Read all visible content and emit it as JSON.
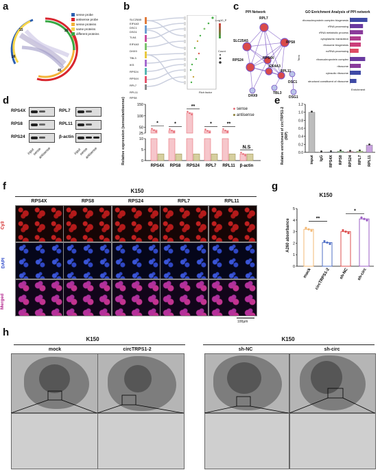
{
  "panels": {
    "a": {
      "label": "a",
      "legend": [
        {
          "text": "sense probe",
          "color": "#2c5fb0"
        },
        {
          "text": "antisense probe",
          "color": "#d8262f"
        },
        {
          "text": "sense proteins",
          "color": "#f3b33a"
        },
        {
          "text": "same proteins",
          "color": "#f7d54a"
        },
        {
          "text": "different proteins",
          "color": "#39a845"
        }
      ],
      "numbers": [
        "15",
        "26",
        "26",
        "45"
      ]
    },
    "b": {
      "label": "b",
      "genes": [
        "SLC25A5",
        "EIF4A3",
        "DSC1",
        "DSG1",
        "TLN1",
        "EIF4A3",
        "DHX9",
        "TBL3",
        "IKS",
        "RPS24",
        "RPS4X",
        "RPL7",
        "RPL11",
        "RPS8"
      ],
      "xlabel": "Rich factor",
      "legend_title": "-Log10_P",
      "count_label": "Count"
    },
    "c": {
      "label": "c",
      "network_title": "PPI Network",
      "nodes": [
        "RPL7",
        "SLC25A5",
        "RPS8",
        "RPS24",
        "RPS4X",
        "EIF4A3",
        "DSC1",
        "RPL11",
        "TBL3",
        "DHX9",
        "DSG1"
      ],
      "go_title": "GO Enrichment Analysis of PPI network",
      "go_terms": [
        "ribonucleoprotein complex biogenesis",
        "rRNA processing",
        "rRNA metabolic process",
        "cytoplasmic translation",
        "ribosome biogenesis",
        "ncRNA processing",
        "ribonucleoprotein complex",
        "ribosome",
        "cytosolic ribosome",
        "structural constituent of ribosome"
      ],
      "go_values": [
        8,
        6,
        6,
        5,
        5,
        4,
        7,
        5,
        5,
        3
      ],
      "go_colors": [
        "#3f4aa6",
        "#6a3aa0",
        "#8a3b9b",
        "#b13c8e",
        "#cc3f7a",
        "#de4b64",
        "#6a3aa0",
        "#8a3b9b",
        "#3f4aa6",
        "#3f4aa6"
      ],
      "xlabel": "Enrichment",
      "side_label": "Term"
    },
    "d": {
      "label": "d",
      "blots_left": [
        "RPS4X",
        "RPS8",
        "RPS24"
      ],
      "blots_right": [
        "RPL7",
        "RPL11",
        "β-actin"
      ],
      "lanes": [
        "input",
        "sense",
        "antisense"
      ],
      "ylabel": "Relative expression (sense/antisense)",
      "legend": [
        {
          "text": "sense",
          "color": "#e8707a"
        },
        {
          "text": "antisense",
          "color": "#9c9256"
        }
      ],
      "sig": [
        "*",
        "*",
        "**",
        "*",
        "**",
        "N.S"
      ]
    },
    "e": {
      "label": "e",
      "ylabel": "Relative enrichment of circTRPS1-2 (RIP)"
    },
    "f": {
      "label": "f",
      "title": "K150",
      "cols": [
        "RPS4X",
        "RPS8",
        "RPS24",
        "RPL7",
        "RPL11"
      ],
      "rows": [
        {
          "text": "Cy3",
          "color": "#d12020"
        },
        {
          "text": "DAPI",
          "color": "#2a45c8"
        },
        {
          "text": "Merged",
          "color": "#b01f8a"
        }
      ],
      "scale": "100μm"
    },
    "g": {
      "label": "g",
      "title": "K150",
      "ylabel": "A260 absorbance",
      "sig": [
        "**",
        "*"
      ]
    },
    "h": {
      "label": "h",
      "left_title": "K150",
      "right_title": "K150",
      "columns": [
        "mock",
        "circTRPS1-2",
        "sh-NC",
        "sh-circ"
      ]
    }
  },
  "chart_data": [
    {
      "type": "bar",
      "title": "",
      "categories": [
        "RPS4X",
        "RPS8",
        "RPS24",
        "RPL7",
        "RPL11",
        "β-actin"
      ],
      "series": [
        {
          "name": "sense",
          "values": [
            38,
            36,
            112,
            35,
            36,
            3
          ]
        },
        {
          "name": "antisense",
          "values": [
            3,
            3,
            3,
            3,
            3,
            3
          ]
        }
      ],
      "ylim": [
        0,
        150
      ],
      "ybreak": [
        10,
        25
      ],
      "yticks": [
        "150",
        "100",
        "50",
        "25",
        "10",
        "5",
        "0"
      ]
    },
    {
      "type": "bar",
      "categories": [
        "input",
        "IgG",
        "RPS4X",
        "RPS8",
        "RPS24",
        "RPL7",
        "RPL11"
      ],
      "values": [
        1.0,
        0.005,
        0.01,
        0.03,
        0.02,
        0.03,
        0.18
      ],
      "ylim": [
        0,
        1.2
      ],
      "yticks": [
        "1.2",
        "1.0",
        "0.8",
        "0.6",
        "0.4",
        "0.2",
        "0.0"
      ]
    },
    {
      "type": "bar",
      "categories": [
        "mock",
        "circTRPS1-2",
        "sh-NC",
        "sh-circ"
      ],
      "values": [
        3.2,
        2.05,
        3.0,
        4.1
      ],
      "ylim": [
        0,
        5
      ],
      "yticks": [
        "5",
        "4",
        "3",
        "2",
        "1",
        "0"
      ],
      "colors": [
        "#f3b874",
        "#4f6fc6",
        "#dd4f4f",
        "#9b5cc4"
      ]
    }
  ]
}
